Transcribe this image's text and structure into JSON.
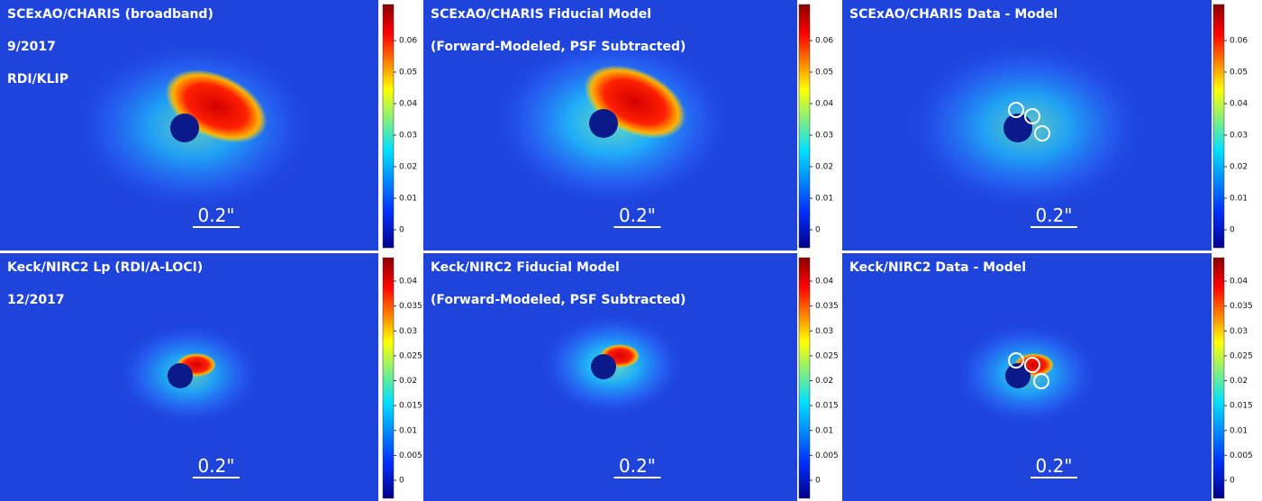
{
  "panels": [
    {
      "lines": [
        "SCExAO/CHARIS (broadband)",
        "9/2017",
        "RDI/KLIP"
      ],
      "scale_bar": "0.2\"",
      "colorbar_ticks": [
        0.06,
        0.05,
        0.04,
        0.03,
        0.02,
        0.01,
        0
      ]
    },
    {
      "lines": [
        "SCExAO/CHARIS Fiducial Model",
        "(Forward-Modeled, PSF Subtracted)"
      ],
      "scale_bar": "0.2\"",
      "colorbar_ticks": [
        0.06,
        0.05,
        0.04,
        0.03,
        0.02,
        0.01,
        0
      ]
    },
    {
      "lines": [
        "SCExAO/CHARIS Data - Model"
      ],
      "scale_bar": "0.2\"",
      "colorbar_ticks": [
        0.06,
        0.05,
        0.04,
        0.03,
        0.02,
        0.01,
        0
      ]
    },
    {
      "lines": [
        "Keck/NIRC2 Lp (RDI/A-LOCI)",
        "12/2017"
      ],
      "scale_bar": "0.2\"",
      "colorbar_ticks": [
        0.04,
        0.035,
        0.03,
        0.025,
        0.02,
        0.015,
        0.01,
        0.005,
        0
      ]
    },
    {
      "lines": [
        "Keck/NIRC2 Fiducial Model",
        "(Forward-Modeled, PSF Subtracted)"
      ],
      "scale_bar": "0.2\"",
      "colorbar_ticks": [
        0.04,
        0.035,
        0.03,
        0.025,
        0.02,
        0.015,
        0.01,
        0.005,
        0
      ]
    },
    {
      "lines": [
        "Keck/NIRC2 Data - Model"
      ],
      "scale_bar": "0.2\"",
      "colorbar_ticks": [
        0.04,
        0.035,
        0.03,
        0.025,
        0.02,
        0.015,
        0.01,
        0.005,
        0
      ]
    }
  ]
}
